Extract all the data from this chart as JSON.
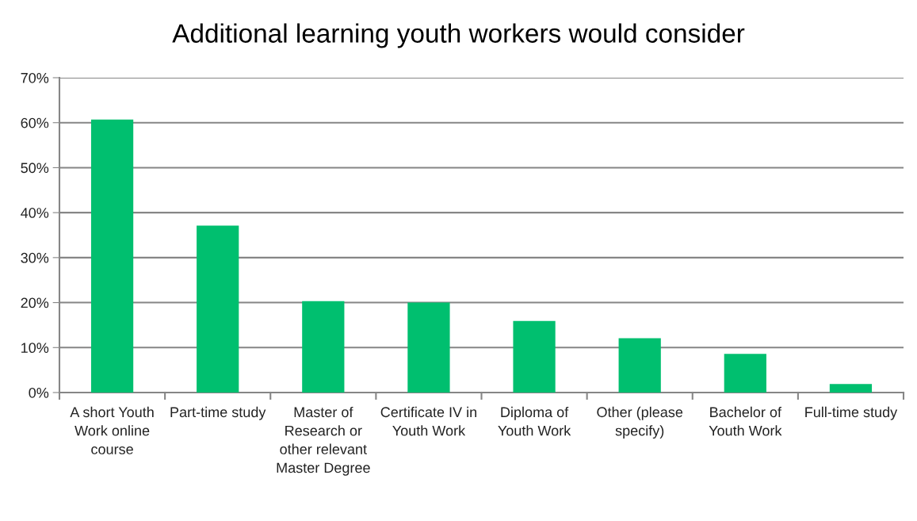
{
  "chart_data": {
    "type": "bar",
    "title": "Additional learning youth workers would consider",
    "categories": [
      "A short Youth Work online course",
      "Part-time study",
      "Master of Research or other relevant Master Degree",
      "Certificate IV in Youth Work",
      "Diploma of Youth Work",
      "Other (please specify)",
      "Bachelor of Youth Work",
      "Full-time study"
    ],
    "values": [
      60.7,
      37.1,
      20.3,
      20.0,
      15.9,
      12.1,
      8.6,
      1.9
    ],
    "color": "#00bf6f",
    "ylim": [
      0,
      70
    ],
    "yticks": [
      {
        "value": 0,
        "label": "0%"
      },
      {
        "value": 10,
        "label": "10%"
      },
      {
        "value": 20,
        "label": "20%"
      },
      {
        "value": 30,
        "label": "30%"
      },
      {
        "value": 40,
        "label": "40%"
      },
      {
        "value": 50,
        "label": "50%"
      },
      {
        "value": 60,
        "label": "60%"
      },
      {
        "value": 70,
        "label": "70%"
      }
    ],
    "grid": "y",
    "legend": false
  }
}
